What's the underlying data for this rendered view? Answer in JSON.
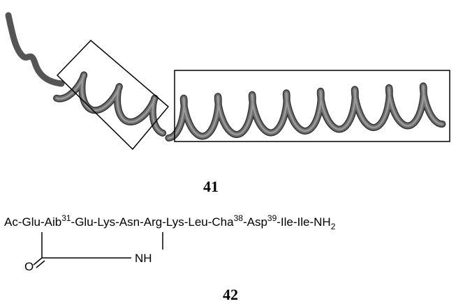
{
  "figure": {
    "compound_a": {
      "label": "41"
    },
    "compound_b": {
      "sequence": [
        "Ac-Glu-Aib",
        "31",
        "-Glu-Lys-Asn-Arg-Lys-Leu-Cha",
        "38",
        "-Asp",
        "39",
        "-Ile-Ile-NH",
        "2"
      ],
      "bridge": {
        "carbonyl": "O",
        "amine": "NH"
      },
      "label": "42"
    }
  }
}
